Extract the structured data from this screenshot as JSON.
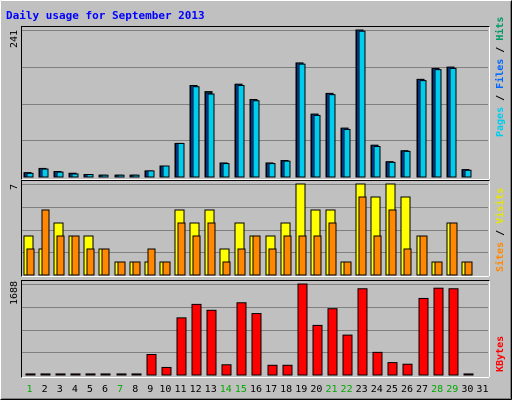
{
  "title": "Daily usage for September 2013",
  "colors": {
    "background": "#c0c0c0",
    "pages": "#00ccee",
    "files": "#0066ff",
    "hits": "#009966",
    "sites": "#ff8800",
    "visits": "#ffff00",
    "kbytes": "#ff0000",
    "title": "#0000ff",
    "weekend_label": "#00aa00"
  },
  "chart_data": [
    {
      "type": "bar",
      "panel": "hits-files-pages",
      "title": "Daily usage for September 2013",
      "ymax_label": "241",
      "ylim": [
        0,
        241
      ],
      "legend": [
        {
          "name": "Pages",
          "color": "#00ccee"
        },
        {
          "name": "Files",
          "color": "#0066ff"
        },
        {
          "name": "Hits",
          "color": "#009966"
        }
      ],
      "categories": [
        "1",
        "2",
        "3",
        "4",
        "5",
        "6",
        "7",
        "8",
        "9",
        "10",
        "11",
        "12",
        "13",
        "14",
        "15",
        "16",
        "17",
        "18",
        "19",
        "20",
        "21",
        "22",
        "23",
        "24",
        "25",
        "26",
        "27",
        "28",
        "29",
        "30",
        "31"
      ],
      "series": [
        {
          "name": "Hits",
          "values": [
            7,
            14,
            9,
            6,
            4,
            3,
            3,
            3,
            10,
            18,
            55,
            150,
            140,
            23,
            152,
            127,
            23,
            27,
            187,
            103,
            137,
            80,
            241,
            52,
            25,
            43,
            160,
            178,
            180,
            12,
            0
          ]
        },
        {
          "name": "Files",
          "values": [
            7,
            14,
            9,
            6,
            4,
            3,
            3,
            3,
            10,
            18,
            55,
            150,
            138,
            23,
            152,
            127,
            23,
            27,
            187,
            103,
            137,
            80,
            241,
            52,
            25,
            43,
            160,
            178,
            180,
            12,
            0
          ]
        },
        {
          "name": "Pages",
          "values": [
            6,
            13,
            8,
            5,
            4,
            3,
            3,
            3,
            10,
            18,
            55,
            148,
            136,
            22,
            150,
            125,
            22,
            26,
            185,
            101,
            135,
            78,
            239,
            50,
            24,
            42,
            158,
            176,
            178,
            11,
            0
          ]
        }
      ]
    },
    {
      "type": "bar",
      "panel": "visits-sites",
      "ymax_label": "7",
      "ylim": [
        0,
        7
      ],
      "legend": [
        {
          "name": "Sites",
          "color": "#ff8800"
        },
        {
          "name": "Visits",
          "color": "#ffff00"
        }
      ],
      "categories": [
        "1",
        "2",
        "3",
        "4",
        "5",
        "6",
        "7",
        "8",
        "9",
        "10",
        "11",
        "12",
        "13",
        "14",
        "15",
        "16",
        "17",
        "18",
        "19",
        "20",
        "21",
        "22",
        "23",
        "24",
        "25",
        "26",
        "27",
        "28",
        "29",
        "30",
        "31"
      ],
      "series": [
        {
          "name": "Visits",
          "values": [
            3,
            2,
            4,
            3,
            3,
            2,
            1,
            1,
            1,
            1,
            5,
            4,
            5,
            2,
            4,
            3,
            3,
            4,
            7,
            5,
            5,
            1,
            7,
            6,
            7,
            6,
            3,
            1,
            4,
            1,
            0
          ]
        },
        {
          "name": "Sites",
          "values": [
            2,
            5,
            3,
            3,
            2,
            2,
            1,
            1,
            2,
            1,
            4,
            3,
            4,
            1,
            2,
            3,
            2,
            3,
            3,
            3,
            4,
            1,
            6,
            3,
            5,
            2,
            3,
            1,
            4,
            1,
            0
          ]
        }
      ]
    },
    {
      "type": "bar",
      "panel": "kbytes",
      "ymax_label": "1688",
      "ylim": [
        0,
        1688
      ],
      "legend": [
        {
          "name": "KBytes",
          "color": "#ff0000"
        }
      ],
      "categories": [
        "1",
        "2",
        "3",
        "4",
        "5",
        "6",
        "7",
        "8",
        "9",
        "10",
        "11",
        "12",
        "13",
        "14",
        "15",
        "16",
        "17",
        "18",
        "19",
        "20",
        "21",
        "22",
        "23",
        "24",
        "25",
        "26",
        "27",
        "28",
        "29",
        "30",
        "31"
      ],
      "series": [
        {
          "name": "KBytes",
          "values": [
            20,
            20,
            20,
            20,
            20,
            20,
            20,
            20,
            380,
            140,
            1060,
            1310,
            1200,
            190,
            1340,
            1140,
            180,
            180,
            1688,
            920,
            1230,
            740,
            1600,
            420,
            230,
            200,
            1420,
            1610,
            1600,
            20,
            0
          ]
        }
      ]
    }
  ],
  "weekend_days": [
    1,
    7,
    14,
    15,
    21,
    22,
    28,
    29
  ]
}
